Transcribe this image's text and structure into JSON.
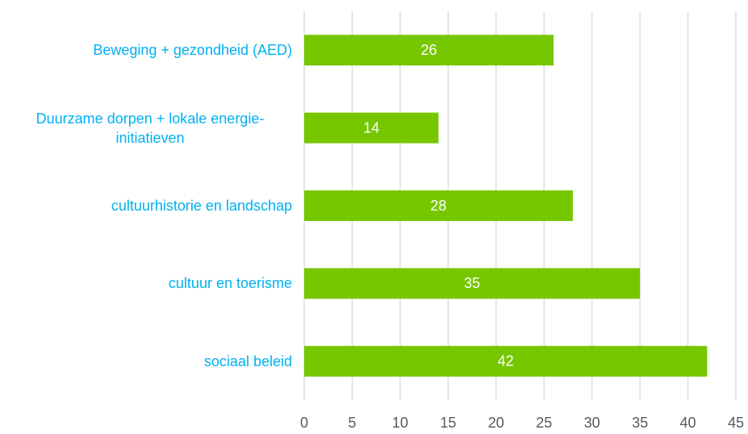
{
  "chart_data": {
    "type": "barh",
    "categories": [
      "Beweging + gezondheid (AED)",
      "Duurzame dorpen + lokale energie-initiatieven",
      "cultuurhistorie en landschap",
      "cultuur en toerisme",
      "sociaal beleid"
    ],
    "values": [
      26,
      14,
      28,
      35,
      42
    ],
    "color": "#77c700",
    "xlim": [
      0,
      45
    ],
    "xticks": [
      0,
      5,
      10,
      15,
      20,
      25,
      30,
      35,
      40,
      45
    ],
    "grid": true
  }
}
